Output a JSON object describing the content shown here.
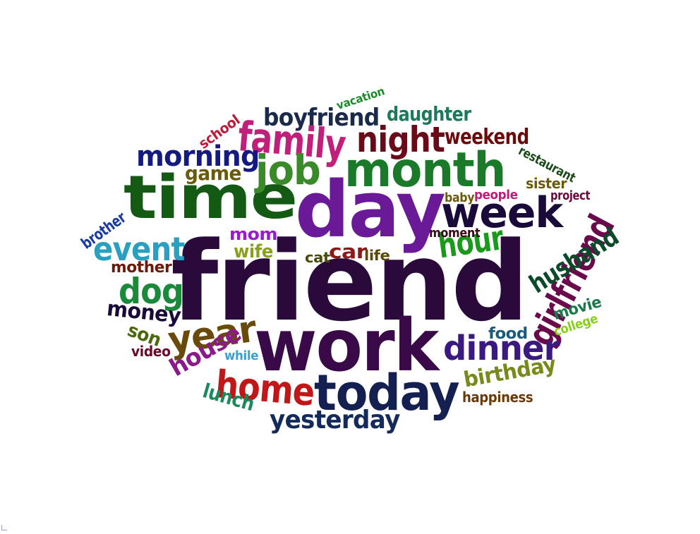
{
  "words": [
    {
      "text": "friend",
      "color": "#2a0a3a"
    },
    {
      "text": "day",
      "color": "#6a1a96"
    },
    {
      "text": "time",
      "color": "#145a14"
    },
    {
      "text": "work",
      "color": "#3a0a48"
    },
    {
      "text": "month",
      "color": "#1a7a2a"
    },
    {
      "text": "today",
      "color": "#142050"
    },
    {
      "text": "week",
      "color": "#1a0a3a"
    },
    {
      "text": "girlfriend",
      "color": "#6a0a4a"
    },
    {
      "text": "family",
      "color": "#c0207a"
    },
    {
      "text": "night",
      "color": "#6a0a18"
    },
    {
      "text": "job",
      "color": "#3a8a2a"
    },
    {
      "text": "morning",
      "color": "#141a80"
    },
    {
      "text": "home",
      "color": "#c01818"
    },
    {
      "text": "dinner",
      "color": "#3a1a80"
    },
    {
      "text": "year",
      "color": "#6a4a0a"
    },
    {
      "text": "event",
      "color": "#2aa0c0"
    },
    {
      "text": "dog",
      "color": "#1a8a3a"
    },
    {
      "text": "hour",
      "color": "#1a9a1a"
    },
    {
      "text": "husband",
      "color": "#0a4a2a"
    },
    {
      "text": "yesterday",
      "color": "#142a5a"
    },
    {
      "text": "boyfriend",
      "color": "#1a2a4a"
    },
    {
      "text": "birthday",
      "color": "#7a8a1a"
    },
    {
      "text": "house",
      "color": "#8a1a8a"
    },
    {
      "text": "daughter",
      "color": "#1a7a5a"
    },
    {
      "text": "weekend",
      "color": "#6a0a0a"
    },
    {
      "text": "money",
      "color": "#1a0a3a"
    },
    {
      "text": "lunch",
      "color": "#1a8a5a"
    },
    {
      "text": "car",
      "color": "#8a1a1a"
    },
    {
      "text": "game",
      "color": "#6a5a0a"
    },
    {
      "text": "wife",
      "color": "#8aa01a"
    },
    {
      "text": "mom",
      "color": "#9a1ad0"
    },
    {
      "text": "mother",
      "color": "#6a1a0a"
    },
    {
      "text": "son",
      "color": "#4a6a0a"
    },
    {
      "text": "movie",
      "color": "#1a7a4a"
    },
    {
      "text": "food",
      "color": "#1a5a7a"
    },
    {
      "text": "brother",
      "color": "#1a3aa0"
    },
    {
      "text": "school",
      "color": "#c01a3a"
    },
    {
      "text": "sister",
      "color": "#6a5a0a"
    },
    {
      "text": "life",
      "color": "#5a4a0a"
    },
    {
      "text": "video",
      "color": "#6a0a2a"
    },
    {
      "text": "cat",
      "color": "#4a4a0a"
    },
    {
      "text": "happiness",
      "color": "#6a3a0a"
    },
    {
      "text": "restaurant",
      "color": "#1a4a1a"
    },
    {
      "text": "people",
      "color": "#c01a7a"
    },
    {
      "text": "project",
      "color": "#6a0a3a"
    },
    {
      "text": "moment",
      "color": "#3a0a1a"
    },
    {
      "text": "vacation",
      "color": "#1a8a2a"
    },
    {
      "text": "college",
      "color": "#8ad01a"
    },
    {
      "text": "baby",
      "color": "#6a5a0a"
    },
    {
      "text": "while",
      "color": "#3aa0d0"
    }
  ]
}
